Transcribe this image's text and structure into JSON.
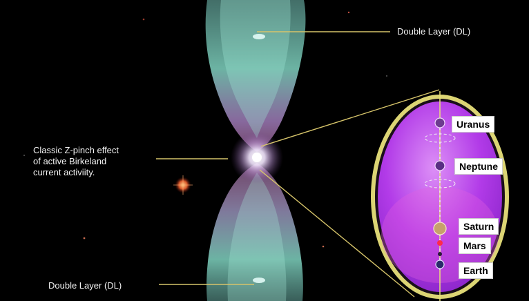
{
  "annotations": {
    "double_layer_top": "Double Layer (DL)",
    "double_layer_bottom": "Double Layer (DL)",
    "zpinch_line1": "Classic Z-pinch effect",
    "zpinch_line2": "of active Birkeland",
    "zpinch_line3": "current activiity."
  },
  "planets": {
    "uranus": "Uranus",
    "neptune": "Neptune",
    "saturn": "Saturn",
    "mars": "Mars",
    "earth": "Earth"
  },
  "colors": {
    "background": "#000000",
    "nebula_teal": "#7fd3c0",
    "nebula_pink": "#d98ccf",
    "oval_fill": "#b23be8",
    "oval_rim": "#e8e07a",
    "callout_line": "#d6c46a"
  }
}
